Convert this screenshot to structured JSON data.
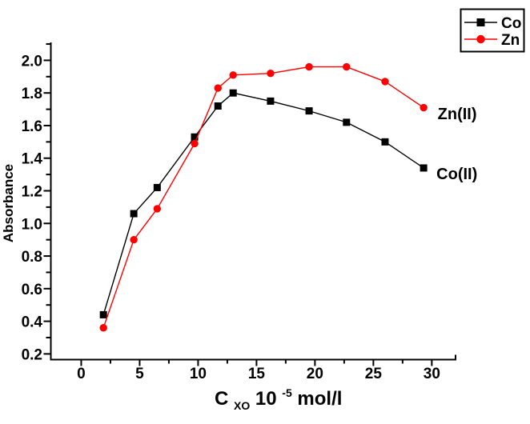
{
  "chart_data": {
    "type": "line",
    "title": "",
    "ylabel": "Absorbance",
    "xlabel_parts": {
      "base": "C",
      "subscript": "XO",
      "mantissa": "10",
      "exponent": "-5",
      "unit": "mol/l"
    },
    "xlim": [
      -2.6,
      32.1
    ],
    "ylim": [
      0.165,
      2.11
    ],
    "x_ticks": [
      0,
      5,
      10,
      15,
      20,
      25,
      30
    ],
    "x_minor_ticks": [
      2.5,
      7.5,
      12.5,
      17.5,
      22.5,
      27.5
    ],
    "y_ticks": [
      0.2,
      0.4,
      0.6,
      0.8,
      1.0,
      1.2,
      1.4,
      1.6,
      1.8,
      2.0
    ],
    "y_minor_ticks": [
      0.3,
      0.5,
      0.7,
      0.9,
      1.1,
      1.3,
      1.5,
      1.7,
      1.9,
      2.1
    ],
    "grid": false,
    "legend_position": "top-right",
    "axis_color": "#000000",
    "series": [
      {
        "name": "Co",
        "color": "#000000",
        "marker": "square",
        "x": [
          1.9,
          4.5,
          6.5,
          9.7,
          11.7,
          13.0,
          16.2,
          19.5,
          22.7,
          26.0,
          29.3
        ],
        "y": [
          0.44,
          1.06,
          1.22,
          1.53,
          1.72,
          1.8,
          1.75,
          1.69,
          1.62,
          1.5,
          1.34
        ]
      },
      {
        "name": "Zn",
        "color": "#ff0000",
        "marker": "circle",
        "x": [
          1.9,
          4.5,
          6.5,
          9.7,
          11.7,
          13.0,
          16.2,
          19.5,
          22.7,
          26.0,
          29.3
        ],
        "y": [
          0.36,
          0.9,
          1.09,
          1.49,
          1.83,
          1.91,
          1.92,
          1.96,
          1.96,
          1.87,
          1.71
        ]
      }
    ],
    "annotations": [
      {
        "text": "Zn(II)",
        "x": 30.5,
        "y": 1.64,
        "color": "#000000"
      },
      {
        "text": "Co(II)",
        "x": 30.4,
        "y": 1.27,
        "color": "#000000"
      }
    ]
  }
}
